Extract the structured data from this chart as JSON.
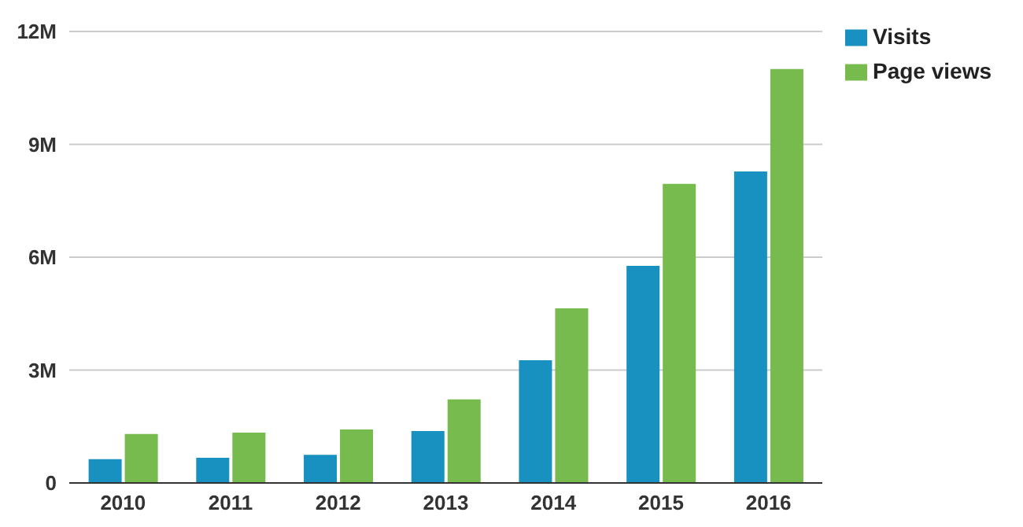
{
  "chart_data": {
    "type": "bar",
    "categories": [
      "2010",
      "2011",
      "2012",
      "2013",
      "2014",
      "2015",
      "2016"
    ],
    "series": [
      {
        "name": "Visits",
        "color": "#1891c0",
        "values": [
          0.63,
          0.67,
          0.75,
          1.38,
          3.26,
          5.77,
          8.28
        ]
      },
      {
        "name": "Page views",
        "color": "#77bb4e",
        "values": [
          1.3,
          1.34,
          1.42,
          2.22,
          4.64,
          7.95,
          11.0
        ]
      }
    ],
    "ylim": [
      0,
      12
    ],
    "yticks": [
      {
        "value": 0,
        "label": "0"
      },
      {
        "value": 3,
        "label": "3M"
      },
      {
        "value": 6,
        "label": "6M"
      },
      {
        "value": 9,
        "label": "9M"
      },
      {
        "value": 12,
        "label": "12M"
      }
    ],
    "grid": "y",
    "legend": "top right"
  }
}
